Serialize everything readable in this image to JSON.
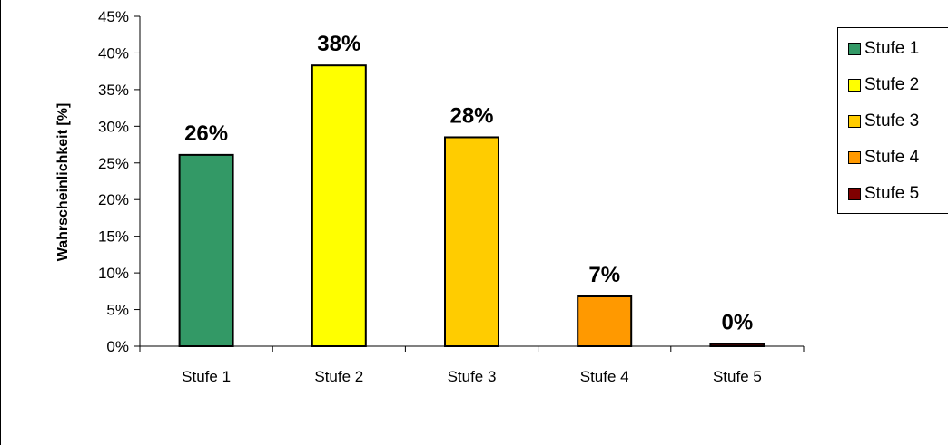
{
  "chart_data": {
    "type": "bar",
    "title": "",
    "xlabel": "",
    "ylabel": "Wahrscheinlichkeit [%]",
    "ylim": [
      0,
      45
    ],
    "y_ticks": [
      "0%",
      "5%",
      "10%",
      "15%",
      "20%",
      "25%",
      "30%",
      "35%",
      "40%",
      "45%"
    ],
    "y_tick_values": [
      0,
      5,
      10,
      15,
      20,
      25,
      30,
      35,
      40,
      45
    ],
    "categories": [
      "Stufe 1",
      "Stufe 2",
      "Stufe 3",
      "Stufe 4",
      "Stufe 5"
    ],
    "values": [
      26.1,
      38.3,
      28.5,
      6.8,
      0.3
    ],
    "data_labels": [
      "26%",
      "38%",
      "28%",
      "7%",
      "0%"
    ],
    "colors": [
      "#339966",
      "#FFFF00",
      "#FFCC00",
      "#FF9900",
      "#800000"
    ],
    "grid": false,
    "legend_position": "right",
    "legend": [
      {
        "label": "Stufe 1",
        "color": "#339966"
      },
      {
        "label": "Stufe 2",
        "color": "#FFFF00"
      },
      {
        "label": "Stufe 3",
        "color": "#FFCC00"
      },
      {
        "label": "Stufe 4",
        "color": "#FF9900"
      },
      {
        "label": "Stufe 5",
        "color": "#800000"
      }
    ]
  }
}
